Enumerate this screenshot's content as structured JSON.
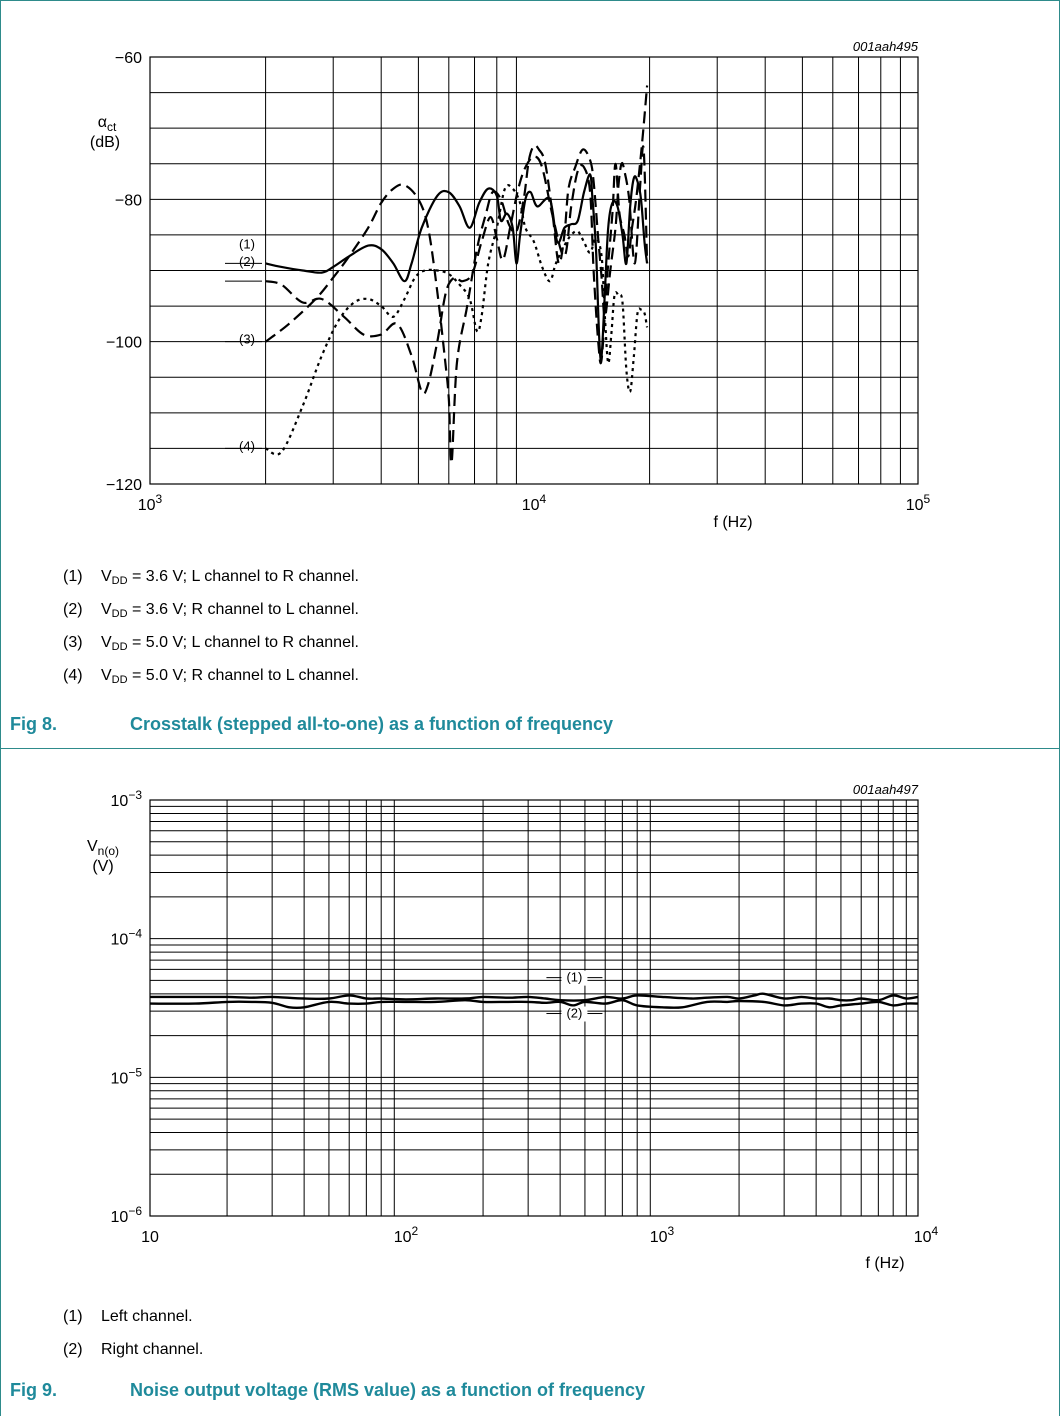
{
  "figures": {
    "fig8": {
      "caption_num": "Fig 8.",
      "caption_text": "Crosstalk (stepped all-to-one) as a function of frequency",
      "code": "001aah495",
      "notes": [
        {
          "num": "(1)",
          "text": [
            "V",
            "DD",
            " = 3.6 V; L channel to R channel."
          ]
        },
        {
          "num": "(2)",
          "text": [
            "V",
            "DD",
            " = 3.6 V; R channel to L channel."
          ]
        },
        {
          "num": "(3)",
          "text": [
            "V",
            "DD",
            " = 5.0 V; L channel to R channel."
          ]
        },
        {
          "num": "(4)",
          "text": [
            "V",
            "DD",
            " = 5.0 V; R channel to L channel."
          ]
        }
      ]
    },
    "fig9": {
      "caption_num": "Fig 9.",
      "caption_text": "Noise output voltage (RMS value) as a function of frequency",
      "code": "001aah497",
      "notes": [
        {
          "num": "(1)",
          "text": "Left channel."
        },
        {
          "num": "(2)",
          "text": "Right channel."
        }
      ]
    }
  },
  "chart_data": [
    {
      "type": "line",
      "id": "fig8",
      "ylabel_symbol": "α",
      "ylabel_sub": "ct",
      "ylabel_unit": "(dB)",
      "xlabel": "f (Hz)",
      "xscale": "log",
      "xlim": [
        1000,
        100000
      ],
      "ylim": [
        -120,
        -60
      ],
      "yticks": [
        -120,
        -100,
        -80,
        -60
      ],
      "yticklabels": [
        "−120",
        "−100",
        "−80",
        "−60"
      ],
      "xticks": [
        1000,
        10000,
        100000
      ],
      "xticklabels": [
        {
          "base": "10",
          "exp": "3"
        },
        {
          "base": "10",
          "exp": "4"
        },
        {
          "base": "10",
          "exp": "5"
        }
      ],
      "grid": true,
      "series": [
        {
          "name": "(1)",
          "style": "solid",
          "label_y": -89,
          "x": [
            2000,
            2200,
            2500,
            2800,
            3000,
            3300,
            3700,
            4000,
            4300,
            4600,
            4800,
            5100,
            5600,
            6000,
            6400,
            6800,
            7200,
            7600,
            8000,
            8200,
            8500,
            8800,
            9000,
            9200,
            9500,
            9800,
            10200,
            11000,
            11500,
            12000,
            12500,
            13000,
            13500,
            14000,
            14200,
            14500,
            14800,
            15000,
            15300,
            15600,
            16000,
            16500,
            17000,
            17400,
            17800,
            18200,
            18600,
            19000,
            19400,
            19700
          ],
          "y": [
            -89,
            -89.5,
            -90,
            -90.3,
            -89.5,
            -88,
            -86.5,
            -87,
            -89,
            -91.5,
            -89,
            -84,
            -79.5,
            -79,
            -81,
            -84,
            -80.5,
            -78.5,
            -79.5,
            -83,
            -82,
            -84,
            -89,
            -85,
            -80,
            -79,
            -81,
            -80,
            -86,
            -84,
            -83.5,
            -83,
            -79,
            -76.5,
            -80,
            -87,
            -100,
            -102,
            -93,
            -84,
            -80.5,
            -81,
            -85,
            -89,
            -81,
            -77,
            -77.5,
            -80,
            -86,
            -89
          ]
        },
        {
          "name": "(2)",
          "style": "dashed",
          "label_y": -91.5,
          "x": [
            2000,
            2200,
            2500,
            2800,
            3200,
            3600,
            4000,
            4400,
            4800,
            5100,
            5300,
            5600,
            5900,
            6200,
            6500,
            6900,
            7300,
            7700,
            8000,
            8300,
            8700,
            9100,
            9500,
            10000,
            10500,
            11200,
            12000,
            12500,
            13000,
            13500,
            14000,
            14300,
            14700,
            15000,
            15500,
            16000,
            16300,
            16700,
            17200,
            17600,
            18000,
            18400,
            18800,
            19200,
            19700
          ],
          "y": [
            -91.5,
            -92,
            -94.5,
            -94,
            -96.5,
            -99,
            -99,
            -97.5,
            -102,
            -107,
            -106,
            -100,
            -93,
            -91,
            -91.5,
            -90.5,
            -86,
            -82.5,
            -85.5,
            -88.5,
            -83.5,
            -78.5,
            -75.5,
            -74,
            -75.5,
            -82.5,
            -88,
            -81,
            -76,
            -75.5,
            -79,
            -90,
            -100,
            -102.5,
            -91,
            -82,
            -75,
            -82,
            -85,
            -88,
            -84,
            -80.5,
            -76,
            -71,
            -64
          ]
        },
        {
          "name": "(3)",
          "style": "dashed",
          "label_y": -100,
          "x": [
            2000,
            2300,
            2700,
            3000,
            3300,
            3700,
            4000,
            4300,
            4600,
            5000,
            5300,
            5600,
            5850,
            6000,
            6100,
            6300,
            6700,
            7100,
            7500,
            7800,
            8200,
            8600,
            9000,
            9400,
            9700,
            10000,
            10300,
            10700,
            11200,
            11600,
            12000,
            12300,
            12800,
            13400,
            14000,
            14300,
            14700,
            15000,
            15300,
            15800,
            16300,
            16600,
            16900,
            17200,
            17700,
            18300,
            18900,
            19300,
            19700
          ],
          "y": [
            -100,
            -97.5,
            -94,
            -91,
            -88,
            -84,
            -80.5,
            -78.5,
            -78,
            -80,
            -84,
            -93,
            -102,
            -108,
            -117,
            -103,
            -95,
            -87,
            -82,
            -79,
            -80,
            -83.5,
            -84.5,
            -80,
            -74.5,
            -72.5,
            -73,
            -75,
            -82.5,
            -89,
            -85,
            -78.5,
            -75.5,
            -73,
            -74.5,
            -77.5,
            -85.5,
            -91,
            -96.5,
            -90,
            -84,
            -78,
            -75,
            -76,
            -80,
            -89,
            -78,
            -73,
            -89
          ]
        },
        {
          "name": "(4)",
          "style": "dotted",
          "label_y": -115,
          "x": [
            2000,
            2200,
            2500,
            2800,
            3100,
            3400,
            3700,
            4000,
            4300,
            4600,
            4900,
            5200,
            5600,
            6000,
            6400,
            6800,
            7100,
            7300,
            7600,
            8000,
            8400,
            8800,
            9200,
            9500,
            10000,
            10500,
            11000,
            11400,
            12000,
            12500,
            13000,
            13500,
            14000,
            14500,
            15000,
            15300,
            15600,
            15900,
            16200,
            16600,
            17000,
            17400,
            17800,
            18200,
            18600,
            19000,
            19400,
            19700
          ],
          "y": [
            -115,
            -115.5,
            -109,
            -102,
            -97,
            -94.5,
            -94,
            -95,
            -96.5,
            -94,
            -91,
            -90,
            -90,
            -90.5,
            -92,
            -94,
            -98.5,
            -96.5,
            -89,
            -84,
            -78.5,
            -78.5,
            -80.5,
            -84,
            -86,
            -89.5,
            -91.5,
            -89,
            -86.5,
            -85,
            -84.5,
            -86,
            -87.5,
            -85.5,
            -88,
            -96.5,
            -103,
            -99,
            -93.5,
            -93.5,
            -94.5,
            -104,
            -107,
            -102,
            -96,
            -95.5,
            -96,
            -98
          ]
        }
      ]
    },
    {
      "type": "line",
      "id": "fig9",
      "ylabel_symbol": "V",
      "ylabel_sub": "n(o)",
      "ylabel_unit": "(V)",
      "xlabel": "f (Hz)",
      "xscale": "log",
      "yscale": "log",
      "xlim": [
        10,
        10000
      ],
      "ylim": [
        1e-06,
        0.001
      ],
      "yticks": [
        1e-06,
        1e-05,
        0.0001,
        0.001
      ],
      "yticklabels": [
        {
          "base": "10",
          "exp": "−6"
        },
        {
          "base": "10",
          "exp": "−5"
        },
        {
          "base": "10",
          "exp": "−4"
        },
        {
          "base": "10",
          "exp": "−3"
        }
      ],
      "xticks": [
        10,
        100,
        1000,
        10000
      ],
      "xticklabels": [
        {
          "base": "10",
          "exp": ""
        },
        {
          "base": "10",
          "exp": "2"
        },
        {
          "base": "10",
          "exp": "3"
        },
        {
          "base": "10",
          "exp": "4"
        }
      ],
      "grid": true,
      "series": [
        {
          "name": "(1)",
          "style": "solid",
          "label_x": 380,
          "x": [
            10,
            15,
            20,
            25,
            30,
            40,
            50,
            60,
            70,
            80,
            100,
            130,
            170,
            200,
            250,
            300,
            350,
            400,
            500,
            600,
            700,
            800,
            1000,
            1300,
            1500,
            1800,
            2000,
            2300,
            2500,
            3000,
            3500,
            4000,
            4500,
            5000,
            5500,
            6000,
            7000,
            8000,
            9000,
            10000
          ],
          "y": [
            3.8e-05,
            3.8e-05,
            3.8e-05,
            3.75e-05,
            3.8e-05,
            3.7e-05,
            3.7e-05,
            3.9e-05,
            3.7e-05,
            3.7e-05,
            3.65e-05,
            3.7e-05,
            3.7e-05,
            3.8e-05,
            3.75e-05,
            3.8e-05,
            3.7e-05,
            3.6e-05,
            3.6e-05,
            3.8e-05,
            3.7e-05,
            3.9e-05,
            3.8e-05,
            3.7e-05,
            3.75e-05,
            3.8e-05,
            3.7e-05,
            3.9e-05,
            4e-05,
            3.7e-05,
            3.8e-05,
            3.7e-05,
            3.7e-05,
            3.6e-05,
            3.6e-05,
            3.7e-05,
            3.6e-05,
            3.9e-05,
            3.7e-05,
            3.8e-05
          ]
        },
        {
          "name": "(2)",
          "style": "solid",
          "label_x": 380,
          "x": [
            10,
            15,
            20,
            25,
            30,
            35,
            40,
            50,
            60,
            70,
            80,
            100,
            130,
            170,
            200,
            250,
            300,
            350,
            400,
            450,
            500,
            600,
            700,
            800,
            1000,
            1200,
            1500,
            1800,
            2000,
            2500,
            3000,
            3500,
            4000,
            4500,
            5000,
            6000,
            7000,
            8000,
            9000,
            10000
          ],
          "y": [
            3.4e-05,
            3.4e-05,
            3.5e-05,
            3.5e-05,
            3.45e-05,
            3.2e-05,
            3.2e-05,
            3.5e-05,
            3.4e-05,
            3.4e-05,
            3.5e-05,
            3.5e-05,
            3.5e-05,
            3.6e-05,
            3.5e-05,
            3.5e-05,
            3.5e-05,
            3.45e-05,
            3.5e-05,
            3.3e-05,
            3.5e-05,
            3.4e-05,
            3.6e-05,
            3.3e-05,
            3.2e-05,
            3.2e-05,
            3.5e-05,
            3.5e-05,
            3.55e-05,
            3.5e-05,
            3.3e-05,
            3.4e-05,
            3.4e-05,
            3.2e-05,
            3.3e-05,
            3.4e-05,
            3.5e-05,
            3.3e-05,
            3.4e-05,
            3.4e-05
          ]
        }
      ]
    }
  ]
}
